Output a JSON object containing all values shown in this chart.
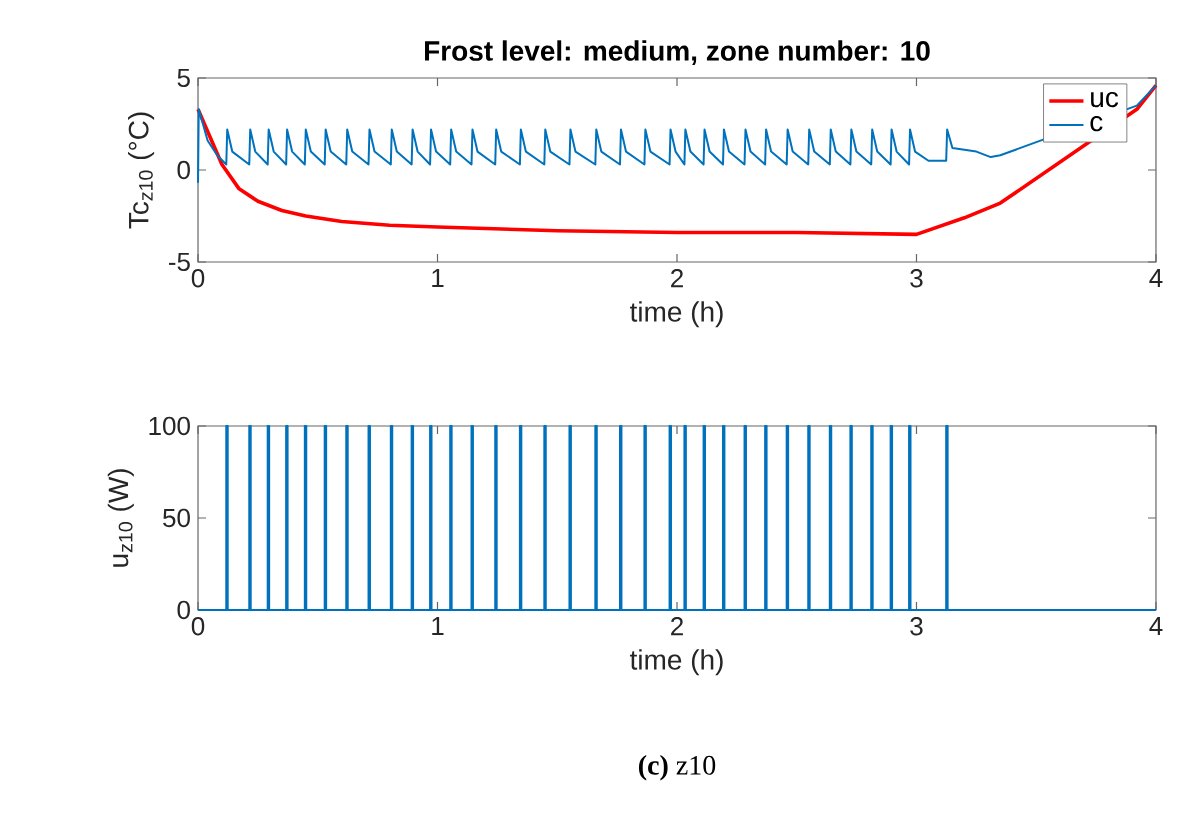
{
  "chart_data": [
    {
      "type": "line",
      "title": "Frost level: medium, zone number: 10",
      "xlabel": "time (h)",
      "ylabel": "Tc$_{z10}$ (°C)",
      "xlim": [
        0,
        4
      ],
      "ylim": [
        -5,
        5
      ],
      "xticks": [
        0,
        1,
        2,
        3,
        4
      ],
      "yticks": [
        -5,
        0,
        5
      ],
      "legend": "top right",
      "series": [
        {
          "name": "uc",
          "color": "#ff0000",
          "x": [
            0,
            0.05,
            0.1,
            0.17,
            0.25,
            0.35,
            0.45,
            0.6,
            0.8,
            1.0,
            1.5,
            2.0,
            2.5,
            3.0,
            3.2,
            3.35,
            3.92,
            4
          ],
          "values": [
            3.3,
            1.8,
            0.3,
            -1.0,
            -1.7,
            -2.2,
            -2.5,
            -2.8,
            -3.0,
            -3.1,
            -3.3,
            -3.4,
            -3.4,
            -3.5,
            -2.6,
            -1.8,
            3.3,
            4.6
          ]
        },
        {
          "name": "c",
          "color": "#0072bd",
          "x": [
            0,
            0.003,
            0.04,
            0.08,
            0.118,
            0.122,
            0.143,
            0.214,
            0.218,
            0.239,
            0.291,
            0.295,
            0.316,
            0.368,
            0.372,
            0.393,
            0.446,
            0.45,
            0.471,
            0.529,
            0.533,
            0.554,
            0.619,
            0.623,
            0.644,
            0.712,
            0.716,
            0.737,
            0.805,
            0.809,
            0.83,
            0.892,
            0.896,
            0.917,
            0.969,
            0.973,
            0.994,
            1.053,
            1.057,
            1.078,
            1.142,
            1.146,
            1.167,
            1.241,
            1.245,
            1.266,
            1.344,
            1.348,
            1.369,
            1.446,
            1.45,
            1.471,
            1.551,
            1.555,
            1.576,
            1.659,
            1.663,
            1.684,
            1.762,
            1.766,
            1.787,
            1.864,
            1.868,
            1.889,
            1.969,
            1.973,
            1.994,
            2.031,
            2.035,
            2.056,
            2.111,
            2.115,
            2.136,
            2.192,
            2.196,
            2.217,
            2.282,
            2.286,
            2.307,
            2.368,
            2.372,
            2.393,
            2.458,
            2.462,
            2.483,
            2.548,
            2.552,
            2.573,
            2.638,
            2.642,
            2.663,
            2.724,
            2.728,
            2.749,
            2.811,
            2.815,
            2.836,
            2.892,
            2.896,
            2.917,
            2.969,
            2.973,
            2.994,
            3.05,
            3.124,
            3.128,
            3.15,
            3.25,
            3.31,
            3.35,
            3.92,
            4
          ],
          "values": [
            -0.7,
            3.3,
            1.6,
            0.8,
            0.3,
            2.2,
            1.0,
            0.3,
            2.2,
            1.0,
            0.3,
            2.2,
            1.0,
            0.3,
            2.2,
            1.0,
            0.3,
            2.2,
            1.0,
            0.3,
            2.2,
            1.0,
            0.3,
            2.2,
            1.0,
            0.3,
            2.2,
            1.0,
            0.3,
            2.2,
            1.0,
            0.3,
            2.2,
            1.0,
            0.3,
            2.2,
            1.0,
            0.3,
            2.2,
            1.0,
            0.3,
            2.2,
            1.0,
            0.3,
            2.2,
            1.0,
            0.3,
            2.2,
            1.0,
            0.3,
            2.2,
            1.0,
            0.3,
            2.2,
            1.0,
            0.3,
            2.2,
            1.0,
            0.3,
            2.2,
            1.0,
            0.3,
            2.2,
            1.0,
            0.3,
            2.2,
            1.0,
            0.3,
            2.2,
            1.0,
            0.3,
            2.2,
            1.0,
            0.3,
            2.2,
            1.0,
            0.3,
            2.2,
            1.0,
            0.3,
            2.2,
            1.0,
            0.3,
            2.2,
            1.0,
            0.3,
            2.2,
            1.0,
            0.3,
            2.2,
            1.0,
            0.3,
            2.2,
            1.0,
            0.3,
            2.2,
            1.0,
            0.3,
            2.2,
            1.0,
            0.3,
            2.2,
            1.0,
            0.5,
            0.5,
            2.2,
            1.2,
            1.0,
            0.7,
            0.8,
            3.5,
            4.6
          ]
        }
      ]
    },
    {
      "type": "line",
      "xlabel": "time (h)",
      "ylabel": "u$_{z10}$ (W)",
      "xlim": [
        0,
        4
      ],
      "ylim": [
        0,
        100
      ],
      "xticks": [
        0,
        1,
        2,
        3,
        4
      ],
      "yticks": [
        0,
        50,
        100
      ],
      "annotations": [
        "**(c)** z10"
      ],
      "series": [
        {
          "color": "#0072bd",
          "x": [
            0,
            0.118,
            0.118,
            0.124,
            0.124,
            0.214,
            0.214,
            0.22,
            0.22,
            0.291,
            0.291,
            0.297,
            0.297,
            0.368,
            0.368,
            0.374,
            0.374,
            0.446,
            0.446,
            0.452,
            0.452,
            0.529,
            0.529,
            0.535,
            0.535,
            0.619,
            0.619,
            0.625,
            0.625,
            0.712,
            0.712,
            0.718,
            0.718,
            0.805,
            0.805,
            0.811,
            0.811,
            0.892,
            0.892,
            0.898,
            0.898,
            0.969,
            0.969,
            0.975,
            0.975,
            1.053,
            1.053,
            1.059,
            1.059,
            1.142,
            1.142,
            1.148,
            1.148,
            1.241,
            1.241,
            1.247,
            1.247,
            1.344,
            1.344,
            1.35,
            1.35,
            1.446,
            1.446,
            1.452,
            1.452,
            1.551,
            1.551,
            1.557,
            1.557,
            1.659,
            1.659,
            1.665,
            1.665,
            1.762,
            1.762,
            1.768,
            1.768,
            1.864,
            1.864,
            1.87,
            1.87,
            1.969,
            1.969,
            1.975,
            1.975,
            2.031,
            2.031,
            2.037,
            2.037,
            2.111,
            2.111,
            2.117,
            2.117,
            2.192,
            2.192,
            2.198,
            2.198,
            2.282,
            2.282,
            2.288,
            2.288,
            2.368,
            2.368,
            2.374,
            2.374,
            2.458,
            2.458,
            2.464,
            2.464,
            2.548,
            2.548,
            2.554,
            2.554,
            2.638,
            2.638,
            2.644,
            2.644,
            2.724,
            2.724,
            2.73,
            2.73,
            2.811,
            2.811,
            2.817,
            2.817,
            2.892,
            2.892,
            2.898,
            2.898,
            2.969,
            2.969,
            2.975,
            2.975,
            3.124,
            3.124,
            3.13,
            3.13,
            4
          ],
          "values": [
            0,
            0,
            100,
            100,
            0,
            0,
            100,
            100,
            0,
            0,
            100,
            100,
            0,
            0,
            100,
            100,
            0,
            0,
            100,
            100,
            0,
            0,
            100,
            100,
            0,
            0,
            100,
            100,
            0,
            0,
            100,
            100,
            0,
            0,
            100,
            100,
            0,
            0,
            100,
            100,
            0,
            0,
            100,
            100,
            0,
            0,
            100,
            100,
            0,
            0,
            100,
            100,
            0,
            0,
            100,
            100,
            0,
            0,
            100,
            100,
            0,
            0,
            100,
            100,
            0,
            0,
            100,
            100,
            0,
            0,
            100,
            100,
            0,
            0,
            100,
            100,
            0,
            0,
            100,
            100,
            0,
            0,
            100,
            100,
            0,
            0,
            100,
            100,
            0,
            0,
            100,
            100,
            0,
            0,
            100,
            100,
            0,
            0,
            100,
            100,
            0,
            0,
            100,
            100,
            0,
            0,
            100,
            100,
            0,
            0,
            100,
            100,
            0,
            0,
            100,
            100,
            0,
            0,
            100,
            100,
            0,
            0,
            100,
            100,
            0,
            0,
            100,
            100,
            0,
            0,
            100,
            100,
            0,
            0,
            100,
            100,
            0,
            0
          ]
        }
      ]
    }
  ]
}
